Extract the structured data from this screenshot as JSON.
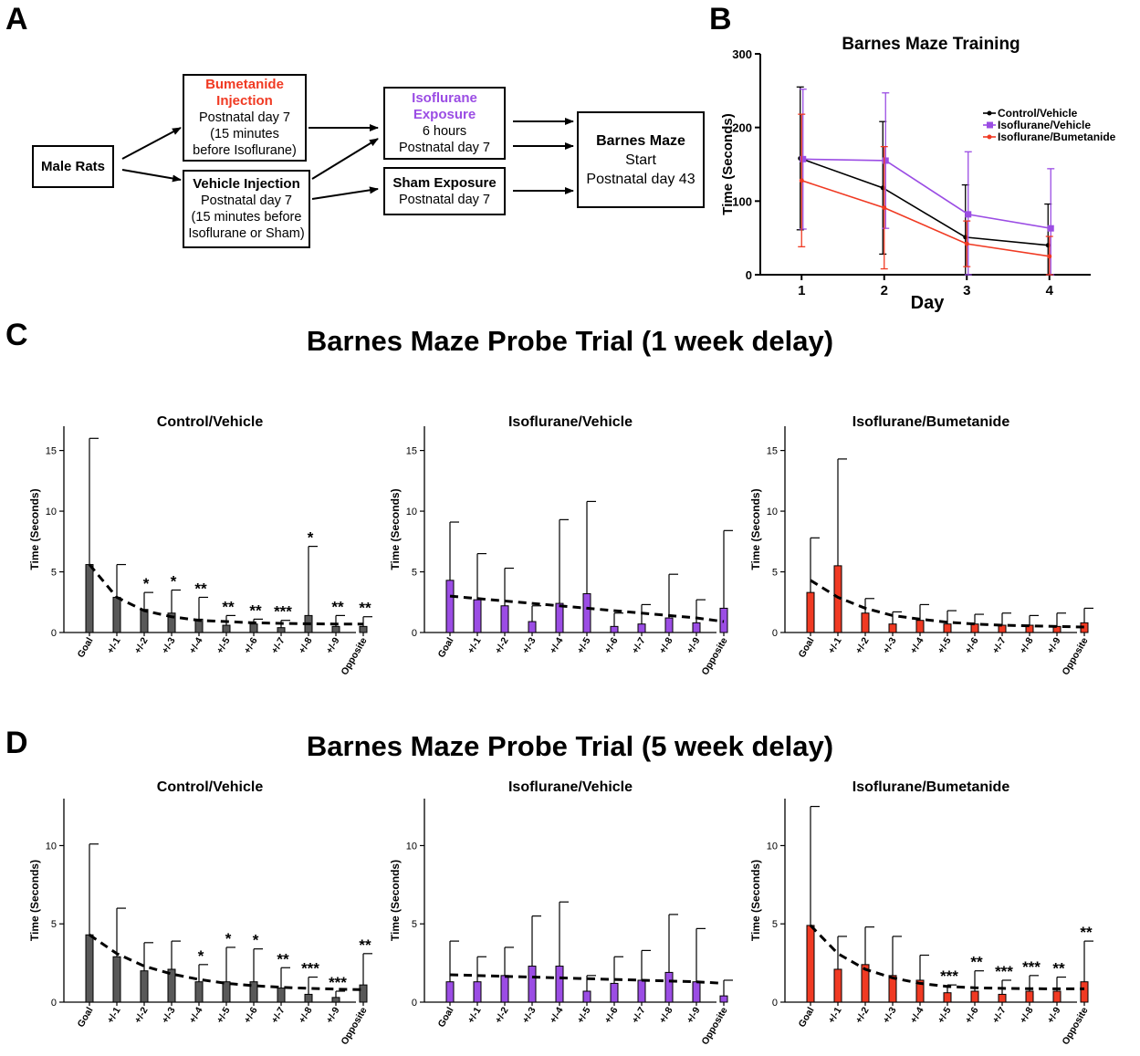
{
  "panels": [
    "A",
    "B",
    "C",
    "D"
  ],
  "flow": {
    "male_rats": "Male Rats",
    "bumetanide": {
      "title": "Bumetanide Injection",
      "lines": [
        "Postnatal day 7",
        "(15 minutes",
        "before Isoflurane)"
      ]
    },
    "vehicle": {
      "title": "Vehicle Injection",
      "lines": [
        "Postnatal day 7",
        "(15 minutes before",
        "Isoflurane or Sham)"
      ]
    },
    "isoflurane": {
      "title": "Isoflurane Exposure",
      "lines": [
        "6 hours",
        "Postnatal day 7"
      ]
    },
    "sham": {
      "title": "Sham Exposure",
      "lines": [
        "Postnatal day 7"
      ]
    },
    "barnes": {
      "title": "Barnes Maze",
      "lines": [
        "Start",
        "Postnatal day 43"
      ]
    }
  },
  "colors": {
    "control": "#000000",
    "iso_vehicle": "#9b4de4",
    "iso_bumetanide": "#f03a23",
    "bar_grey": "#595959"
  },
  "section_titles": {
    "C": "Barnes Maze Probe Trial (1 week delay)",
    "D": "Barnes Maze Probe Trial (5 week delay)"
  },
  "chart_data": [
    {
      "id": "B",
      "type": "line",
      "title": "Barnes Maze Training",
      "xlabel": "Day",
      "ylabel": "Time (Seconds)",
      "x": [
        1,
        2,
        3,
        4
      ],
      "xlim": [
        0.5,
        4.5
      ],
      "ylim": [
        0,
        300
      ],
      "yticks": [
        0,
        100,
        200,
        300
      ],
      "legend": "right",
      "series": [
        {
          "name": "Control/Vehicle",
          "color": "#000000",
          "marker": "circle",
          "values": [
            158,
            118,
            51,
            40
          ],
          "err": [
            97,
            90,
            71,
            56
          ]
        },
        {
          "name": "Isoflurane/Vehicle",
          "color": "#9b4de4",
          "marker": "square",
          "values": [
            157,
            155,
            82,
            63
          ],
          "err": [
            95,
            92,
            85,
            81
          ]
        },
        {
          "name": "Isoflurane/Bumetanide",
          "color": "#f03a23",
          "marker": "circle",
          "values": [
            128,
            91,
            42,
            25
          ],
          "err": [
            90,
            83,
            31,
            27
          ]
        }
      ]
    },
    {
      "id": "C1",
      "type": "bar",
      "title": "Control/Vehicle",
      "ylabel": "Time (Seconds)",
      "color": "#595959",
      "categories": [
        "Goal",
        "+/-1",
        "+/-2",
        "+/-3",
        "+/-4",
        "+/-5",
        "+/-6",
        "+/-7",
        "+/-8",
        "+/-9",
        "Opposite"
      ],
      "values": [
        5.6,
        2.9,
        1.9,
        1.6,
        1.1,
        0.6,
        0.7,
        0.4,
        1.4,
        0.5,
        0.5
      ],
      "err_top": [
        16.0,
        5.6,
        3.3,
        3.5,
        2.9,
        1.4,
        1.1,
        1.0,
        7.1,
        1.4,
        1.3
      ],
      "stars": [
        "",
        "",
        "*",
        "*",
        "**",
        "**",
        "**",
        "***",
        "*",
        "**",
        "**"
      ],
      "ylim": [
        0,
        17
      ],
      "yticks": [
        0,
        5,
        10,
        15
      ],
      "fit": [
        5.6,
        2.9,
        1.8,
        1.3,
        1.0,
        0.9,
        0.8,
        0.75,
        0.72,
        0.7,
        0.7
      ]
    },
    {
      "id": "C2",
      "type": "bar",
      "title": "Isoflurane/Vehicle",
      "ylabel": "Time (Seconds)",
      "color": "#9b4de4",
      "categories": [
        "Goal",
        "+/-1",
        "+/-2",
        "+/-3",
        "+/-4",
        "+/-5",
        "+/-6",
        "+/-7",
        "+/-8",
        "+/-9",
        "Opposite"
      ],
      "values": [
        4.3,
        2.7,
        2.2,
        0.9,
        2.4,
        3.2,
        0.5,
        0.7,
        1.2,
        0.8,
        2.0
      ],
      "err_top": [
        9.1,
        6.5,
        5.3,
        2.2,
        9.3,
        10.8,
        1.6,
        2.3,
        4.8,
        2.7,
        8.4
      ],
      "stars": [
        "",
        "",
        "",
        "",
        "",
        "",
        "",
        "",
        "",
        "",
        ""
      ],
      "ylim": [
        0,
        17
      ],
      "yticks": [
        0,
        5,
        10,
        15
      ],
      "fit": [
        3.0,
        2.8,
        2.6,
        2.4,
        2.2,
        2.0,
        1.8,
        1.6,
        1.4,
        1.2,
        0.9
      ]
    },
    {
      "id": "C3",
      "type": "bar",
      "title": "Isoflurane/Bumetanide",
      "ylabel": "Time (Seconds)",
      "color": "#f03a23",
      "categories": [
        "Goal",
        "+/-1",
        "+/-2",
        "+/-3",
        "+/-4",
        "+/-5",
        "+/-6",
        "+/-7",
        "+/-8",
        "+/-9",
        "Opposite"
      ],
      "values": [
        3.3,
        5.5,
        1.6,
        0.7,
        1.0,
        0.7,
        0.7,
        0.6,
        0.6,
        0.5,
        0.8
      ],
      "err_top": [
        7.8,
        14.3,
        2.8,
        1.7,
        2.3,
        1.8,
        1.5,
        1.6,
        1.4,
        1.6,
        2.0
      ],
      "stars": [
        "",
        "",
        "",
        "",
        "",
        "",
        "",
        "",
        "",
        "",
        ""
      ],
      "ylim": [
        0,
        17
      ],
      "yticks": [
        0,
        5,
        10,
        15
      ],
      "fit": [
        4.3,
        2.9,
        2.0,
        1.4,
        1.1,
        0.85,
        0.7,
        0.6,
        0.55,
        0.5,
        0.45
      ]
    },
    {
      "id": "D1",
      "type": "bar",
      "title": "Control/Vehicle",
      "ylabel": "Time (Seconds)",
      "color": "#595959",
      "categories": [
        "Goal",
        "+/-1",
        "+/-2",
        "+/-3",
        "+/-4",
        "+/-5",
        "+/-6",
        "+/-7",
        "+/-8",
        "+/-9",
        "Opposite"
      ],
      "values": [
        4.3,
        2.9,
        2.0,
        2.1,
        1.3,
        1.3,
        1.3,
        0.9,
        0.5,
        0.3,
        1.1
      ],
      "err_top": [
        10.1,
        6.0,
        3.8,
        3.9,
        2.4,
        3.5,
        3.4,
        2.2,
        1.6,
        0.7,
        3.1
      ],
      "stars": [
        "",
        "",
        "",
        "",
        "*",
        "*",
        "*",
        "**",
        "***",
        "***",
        "**"
      ],
      "ylim": [
        0,
        13
      ],
      "yticks": [
        0,
        5,
        10
      ],
      "fit": [
        4.3,
        3.1,
        2.3,
        1.8,
        1.45,
        1.2,
        1.05,
        0.95,
        0.88,
        0.83,
        0.8
      ]
    },
    {
      "id": "D2",
      "type": "bar",
      "title": "Isoflurane/Vehicle",
      "ylabel": "Time (Seconds)",
      "color": "#9b4de4",
      "categories": [
        "Goal",
        "+/-1",
        "+/-2",
        "+/-3",
        "+/-4",
        "+/-5",
        "+/-6",
        "+/-7",
        "+/-8",
        "+/-9",
        "Opposite"
      ],
      "values": [
        1.3,
        1.3,
        1.7,
        2.3,
        2.3,
        0.7,
        1.2,
        1.4,
        1.9,
        1.3,
        0.4
      ],
      "err_top": [
        3.9,
        2.9,
        3.5,
        5.5,
        6.4,
        1.7,
        2.9,
        3.3,
        5.6,
        4.7,
        1.4
      ],
      "stars": [
        "",
        "",
        "",
        "",
        "",
        "",
        "",
        "",
        "",
        "",
        ""
      ],
      "ylim": [
        0,
        13
      ],
      "yticks": [
        0,
        5,
        10
      ],
      "fit": [
        1.75,
        1.7,
        1.65,
        1.6,
        1.55,
        1.5,
        1.45,
        1.4,
        1.35,
        1.3,
        1.2
      ]
    },
    {
      "id": "D3",
      "type": "bar",
      "title": "Isoflurane/Bumetanide",
      "ylabel": "Time (Seconds)",
      "color": "#f03a23",
      "categories": [
        "Goal",
        "+/-1",
        "+/-2",
        "+/-3",
        "+/-4",
        "+/-5",
        "+/-6",
        "+/-7",
        "+/-8",
        "+/-9",
        "Opposite"
      ],
      "values": [
        4.9,
        2.1,
        2.4,
        1.7,
        1.4,
        0.6,
        0.7,
        0.5,
        0.7,
        0.7,
        1.3
      ],
      "err_top": [
        12.5,
        4.2,
        4.8,
        4.2,
        3.0,
        1.1,
        2.0,
        1.4,
        1.7,
        1.6,
        3.9
      ],
      "stars": [
        "",
        "",
        "",
        "",
        "",
        "***",
        "**",
        "***",
        "***",
        "**",
        "**"
      ],
      "ylim": [
        0,
        13
      ],
      "yticks": [
        0,
        5,
        10
      ],
      "fit": [
        4.9,
        3.1,
        2.1,
        1.55,
        1.2,
        1.0,
        0.92,
        0.88,
        0.86,
        0.85,
        0.85
      ]
    }
  ]
}
